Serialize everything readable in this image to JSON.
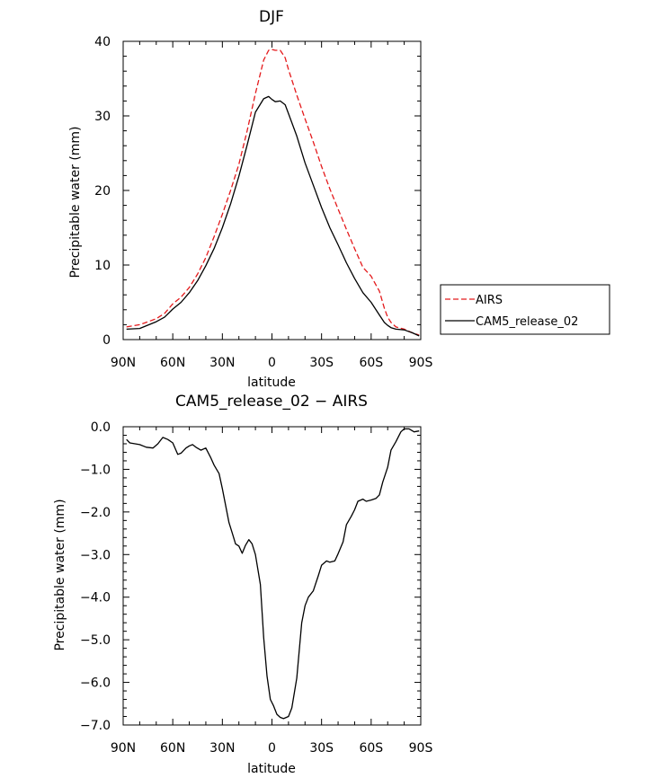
{
  "chart_data": [
    {
      "type": "line",
      "title": "DJF",
      "xlabel": "latitude",
      "ylabel": "Precipitable water (mm)",
      "xlim": [
        90,
        -90
      ],
      "ylim": [
        0,
        40
      ],
      "xticks": [
        90,
        60,
        30,
        0,
        -30,
        -60,
        -90
      ],
      "xtick_labels": [
        "90N",
        "60N",
        "30N",
        "0",
        "30S",
        "60S",
        "90S"
      ],
      "yticks": [
        0,
        10,
        20,
        30,
        40
      ],
      "ytick_labels": [
        "0",
        "10",
        "20",
        "30",
        "40"
      ],
      "legend": {
        "position": "right",
        "entries": [
          "AIRS",
          "CAM5_release_02"
        ]
      },
      "series": [
        {
          "name": "AIRS",
          "color": "#e41a1c",
          "dash": "dashed",
          "x": [
            88,
            80,
            70,
            65,
            60,
            55,
            50,
            45,
            40,
            35,
            30,
            25,
            20,
            15,
            10,
            5,
            2,
            0,
            -2,
            -5,
            -8,
            -10,
            -15,
            -20,
            -25,
            -30,
            -35,
            -40,
            -45,
            -50,
            -55,
            -60,
            -65,
            -68,
            -70,
            -72,
            -75,
            -80,
            -85,
            -89
          ],
          "values": [
            1.7,
            2.0,
            2.8,
            3.5,
            4.8,
            5.7,
            7.0,
            8.8,
            11.0,
            13.8,
            16.8,
            20.0,
            23.5,
            28.0,
            33.0,
            37.5,
            38.8,
            38.9,
            38.8,
            38.8,
            37.8,
            36.2,
            32.8,
            29.6,
            26.5,
            23.2,
            20.2,
            17.5,
            14.8,
            12.2,
            9.7,
            8.5,
            6.5,
            4.2,
            3.0,
            2.3,
            1.7,
            1.4,
            0.9,
            0.6
          ]
        },
        {
          "name": "CAM5_release_02",
          "color": "#000000",
          "dash": "solid",
          "x": [
            88,
            80,
            70,
            65,
            60,
            55,
            50,
            45,
            40,
            35,
            30,
            25,
            20,
            15,
            10,
            5,
            2,
            0,
            -2,
            -5,
            -8,
            -10,
            -15,
            -20,
            -25,
            -30,
            -35,
            -40,
            -45,
            -50,
            -55,
            -60,
            -65,
            -68,
            -70,
            -72,
            -75,
            -80,
            -85,
            -89
          ],
          "values": [
            1.4,
            1.5,
            2.4,
            3.0,
            4.1,
            5.0,
            6.3,
            7.9,
            9.9,
            12.2,
            15.0,
            18.2,
            21.9,
            26.1,
            30.5,
            32.3,
            32.6,
            32.2,
            31.9,
            32.0,
            31.5,
            30.3,
            27.3,
            23.7,
            20.7,
            17.7,
            15.0,
            12.7,
            10.3,
            8.2,
            6.3,
            5.0,
            3.3,
            2.3,
            1.9,
            1.6,
            1.4,
            1.3,
            0.9,
            0.5
          ]
        }
      ]
    },
    {
      "type": "line",
      "title": "CAM5_release_02 − AIRS",
      "xlabel": "latitude",
      "ylabel": "Precipitable water (mm)",
      "xlim": [
        90,
        -90
      ],
      "ylim": [
        -7,
        0
      ],
      "xticks": [
        90,
        60,
        30,
        0,
        -30,
        -60,
        -90
      ],
      "xtick_labels": [
        "90N",
        "60N",
        "30N",
        "0",
        "30S",
        "60S",
        "90S"
      ],
      "yticks": [
        0,
        -1,
        -2,
        -3,
        -4,
        -5,
        -6,
        -7
      ],
      "ytick_labels": [
        "0.0",
        "−1.0",
        "−2.0",
        "−3.0",
        "−4.0",
        "−5.0",
        "−6.0",
        "−7.0"
      ],
      "series": [
        {
          "name": "CAM5_release_02 − AIRS",
          "color": "#000000",
          "dash": "solid",
          "x": [
            88,
            86,
            80,
            76,
            72,
            69,
            66,
            63,
            60,
            57,
            55,
            52,
            50,
            48,
            46,
            43,
            40,
            37,
            35,
            32,
            30,
            26,
            24,
            22,
            20,
            18,
            16,
            14,
            12,
            10,
            7,
            5,
            3,
            1,
            -1,
            -3,
            -5,
            -7,
            -10,
            -12,
            -15,
            -18,
            -20,
            -22,
            -25,
            -28,
            -30,
            -33,
            -35,
            -38,
            -40,
            -43,
            -45,
            -48,
            -50,
            -52,
            -55,
            -57,
            -60,
            -63,
            -65,
            -67,
            -70,
            -72,
            -75,
            -78,
            -80,
            -83,
            -86,
            -89
          ],
          "values": [
            -0.3,
            -0.38,
            -0.42,
            -0.48,
            -0.5,
            -0.4,
            -0.25,
            -0.3,
            -0.38,
            -0.65,
            -0.62,
            -0.5,
            -0.45,
            -0.42,
            -0.48,
            -0.55,
            -0.5,
            -0.73,
            -0.9,
            -1.1,
            -1.45,
            -2.25,
            -2.5,
            -2.75,
            -2.8,
            -2.97,
            -2.78,
            -2.65,
            -2.75,
            -3.0,
            -3.7,
            -4.95,
            -5.85,
            -6.4,
            -6.55,
            -6.75,
            -6.82,
            -6.85,
            -6.8,
            -6.6,
            -5.9,
            -4.6,
            -4.2,
            -4.0,
            -3.85,
            -3.5,
            -3.25,
            -3.15,
            -3.18,
            -3.15,
            -2.98,
            -2.7,
            -2.3,
            -2.1,
            -1.95,
            -1.75,
            -1.7,
            -1.75,
            -1.72,
            -1.68,
            -1.6,
            -1.3,
            -0.95,
            -0.55,
            -0.35,
            -0.12,
            -0.05,
            -0.05,
            -0.12,
            -0.1
          ]
        }
      ]
    }
  ]
}
